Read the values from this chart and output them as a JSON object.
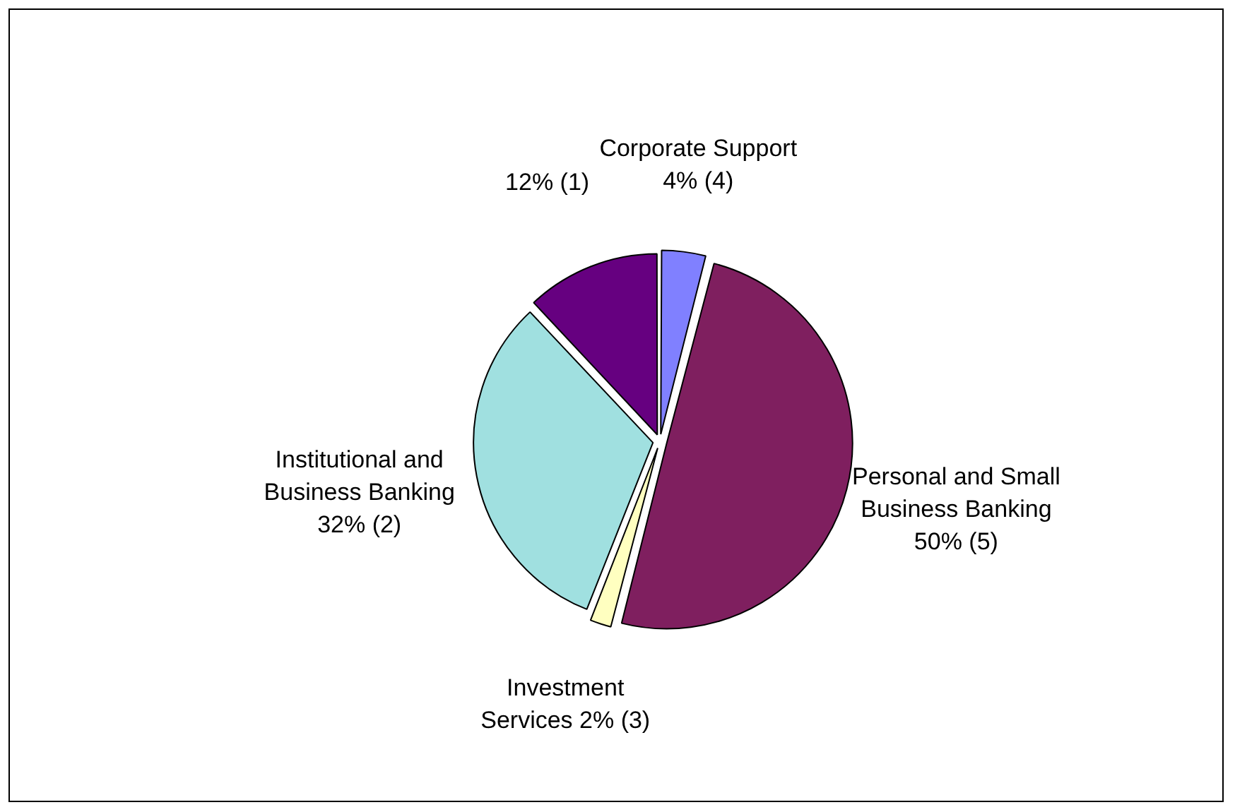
{
  "chart_data": {
    "type": "pie",
    "categories": [
      "Corporate Support",
      "Personal and Small Business Banking",
      "Investment Services",
      "Institutional and Business Banking",
      null
    ],
    "values": [
      4,
      50,
      2,
      32,
      12
    ],
    "value_labels": [
      "4% (4)",
      "50% (5)",
      "2% (3)",
      "32% (2)",
      "12% (1)"
    ],
    "colors": [
      "#8080ff",
      "#7f1f5f",
      "#ffffc0",
      "#a0e0e0",
      "#660080"
    ],
    "legend": false
  }
}
